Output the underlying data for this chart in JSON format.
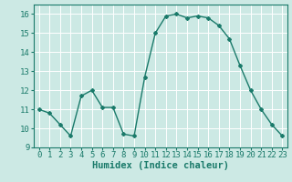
{
  "x": [
    0,
    1,
    2,
    3,
    4,
    5,
    6,
    7,
    8,
    9,
    10,
    11,
    12,
    13,
    14,
    15,
    16,
    17,
    18,
    19,
    20,
    21,
    22,
    23
  ],
  "y": [
    11.0,
    10.8,
    10.2,
    9.6,
    11.7,
    12.0,
    11.1,
    11.1,
    9.7,
    9.6,
    12.7,
    15.0,
    15.9,
    16.0,
    15.8,
    15.9,
    15.8,
    15.4,
    14.7,
    13.3,
    12.0,
    11.0,
    10.2,
    9.6
  ],
  "line_color": "#1a7a6a",
  "marker": "D",
  "marker_size": 2,
  "linewidth": 1.0,
  "xlabel": "Humidex (Indice chaleur)",
  "xlim": [
    -0.5,
    23.5
  ],
  "ylim": [
    9,
    16.5
  ],
  "yticks": [
    9,
    10,
    11,
    12,
    13,
    14,
    15,
    16
  ],
  "xticks": [
    0,
    1,
    2,
    3,
    4,
    5,
    6,
    7,
    8,
    9,
    10,
    11,
    12,
    13,
    14,
    15,
    16,
    17,
    18,
    19,
    20,
    21,
    22,
    23
  ],
  "bg_color": "#cce9e4",
  "grid_color": "#ffffff",
  "tick_label_fontsize": 6.5,
  "xlabel_fontsize": 7.5
}
